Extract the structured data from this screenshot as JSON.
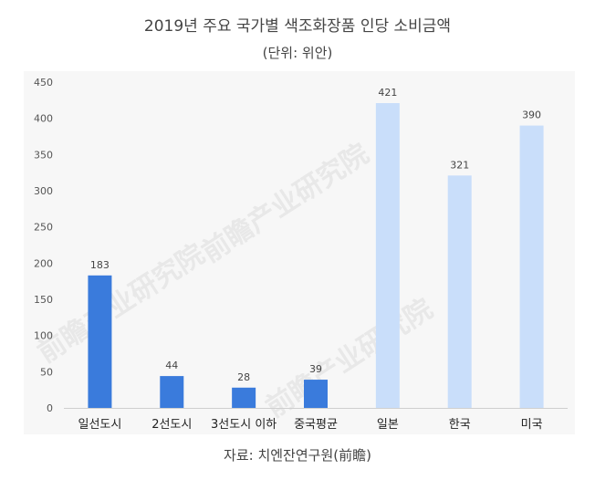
{
  "title": "2019년 주요 국가별 색조화장품 인당 소비금액",
  "subtitle": "(단위: 위안)",
  "source": "자료: 치엔잔연구원(前瞻)",
  "watermark": "前瞻产业研究院",
  "colors": {
    "domestic": "#3a7bdc",
    "foreign": "#c9defa"
  },
  "chart_data": {
    "type": "bar",
    "categories": [
      "일선도시",
      "2선도시",
      "3선도시 이하",
      "중국평균",
      "일본",
      "한국",
      "미국"
    ],
    "values": [
      183,
      44,
      28,
      39,
      421,
      321,
      390
    ],
    "ylim": [
      0,
      450
    ],
    "yticks": [
      0,
      50,
      100,
      150,
      200,
      250,
      300,
      350,
      400,
      450
    ],
    "bar_color_keys": [
      "domestic",
      "domestic",
      "domestic",
      "domestic",
      "foreign",
      "foreign",
      "foreign"
    ],
    "grid": false
  }
}
